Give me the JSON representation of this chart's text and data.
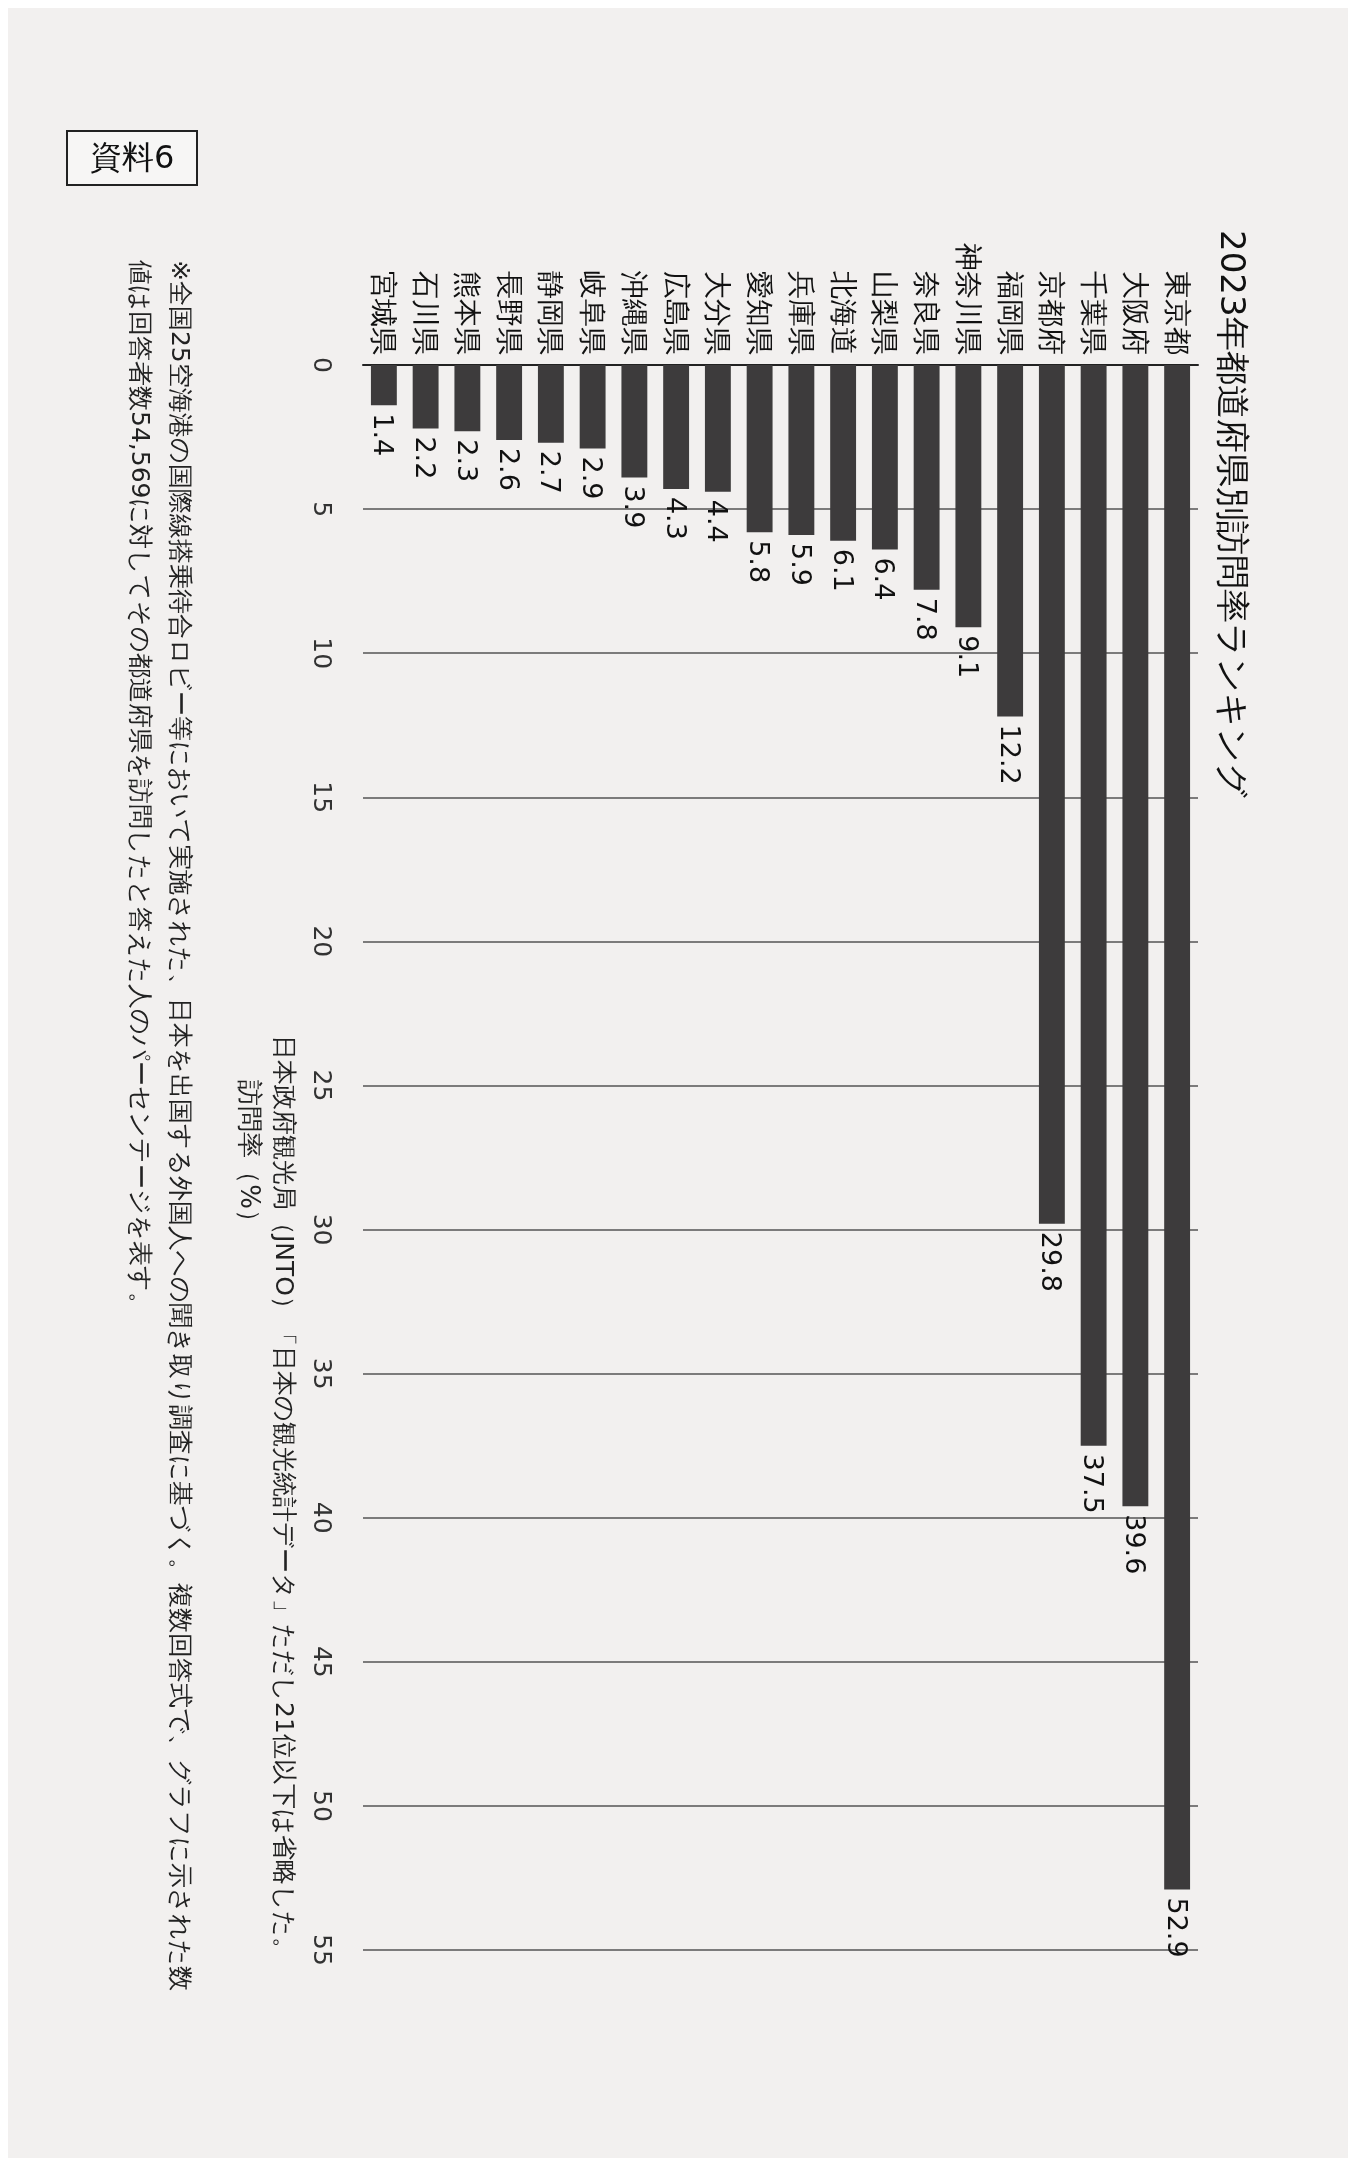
{
  "chart_data": {
    "type": "bar",
    "title": "2023年都道府県別訪問率ランキング",
    "ylabel": "訪問率（%）",
    "categories": [
      "宮城県",
      "石川県",
      "熊本県",
      "長野県",
      "静岡県",
      "岐阜県",
      "沖縄県",
      "広島県",
      "大分県",
      "愛知県",
      "兵庫県",
      "北海道",
      "山梨県",
      "奈良県",
      "神奈川県",
      "福岡県",
      "京都府",
      "千葉県",
      "大阪府",
      "東京都"
    ],
    "values": [
      1.4,
      2.2,
      2.3,
      2.6,
      2.7,
      2.9,
      3.9,
      4.3,
      4.4,
      5.8,
      5.9,
      6.1,
      6.4,
      7.8,
      9.1,
      12.2,
      29.8,
      37.5,
      39.6,
      52.9
    ],
    "color": "#3d3b3c",
    "data_labels": true,
    "ylim": [
      55,
      0
    ],
    "yticks": [
      0,
      5,
      10,
      15,
      20,
      25,
      30,
      35,
      40,
      45,
      50,
      55
    ],
    "grid": "y",
    "annotations": [
      "資料6",
      "日本政府観光局（JNTO）「日本の観光統計データ」ただし21位以下は省略した。",
      "※全国25空海港の国際線搭乗待合ロビー等において実施された、日本を出国する外国人への聞き取り調査に基づく。複数回答式で、グラフに示された数値は回答者数54,569に対してその都道府県を訪問したと答えた人のパーセンテージを表す。"
    ]
  }
}
